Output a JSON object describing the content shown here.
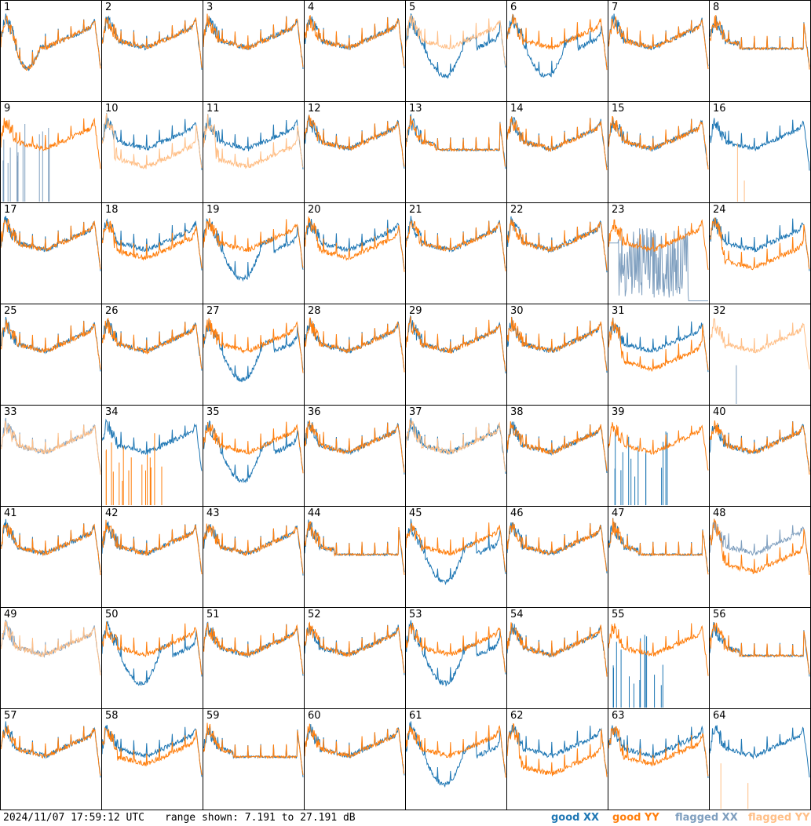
{
  "footer": {
    "timestamp": "2024/11/07 17:59:12 UTC",
    "range_text": "range shown: 7.191 to 27.191 dB"
  },
  "legend": {
    "good_xx": "good XX",
    "good_yy": "good YY",
    "flagged_xx": "flagged XX",
    "flagged_yy": "flagged YY"
  },
  "colors": {
    "good_xx": "#1f77b4",
    "good_yy": "#ff7f0e",
    "flagged_xx": "#7f9fbf",
    "flagged_yy": "#ffbf87"
  },
  "chart_data": {
    "type": "line",
    "grid": {
      "rows": 8,
      "cols": 8
    },
    "ylim_db": [
      7.191,
      27.191
    ],
    "panels": [
      {
        "label": "1",
        "xx": "good",
        "yy": "good",
        "shape": "early-drop"
      },
      {
        "label": "2",
        "xx": "good",
        "yy": "good",
        "shape": "normal"
      },
      {
        "label": "3",
        "xx": "good",
        "yy": "good",
        "shape": "normal"
      },
      {
        "label": "4",
        "xx": "good",
        "yy": "good",
        "shape": "normal"
      },
      {
        "label": "5",
        "xx": "good",
        "yy": "flagged",
        "shape": "xx-dip"
      },
      {
        "label": "6",
        "xx": "good",
        "yy": "good",
        "shape": "xx-dip"
      },
      {
        "label": "7",
        "xx": "good",
        "yy": "good",
        "shape": "normal"
      },
      {
        "label": "8",
        "xx": "good",
        "yy": "good",
        "shape": "flat"
      },
      {
        "label": "9",
        "xx": "flagged",
        "yy": "good",
        "shape": "xx-spikes"
      },
      {
        "label": "10",
        "xx": "good",
        "yy": "flagged",
        "shape": "split"
      },
      {
        "label": "11",
        "xx": "good",
        "yy": "flagged",
        "shape": "split"
      },
      {
        "label": "12",
        "xx": "good",
        "yy": "good",
        "shape": "normal"
      },
      {
        "label": "13",
        "xx": "good",
        "yy": "good",
        "shape": "flat"
      },
      {
        "label": "14",
        "xx": "good",
        "yy": "good",
        "shape": "normal"
      },
      {
        "label": "15",
        "xx": "good",
        "yy": "good",
        "shape": "normal"
      },
      {
        "label": "16",
        "xx": "good",
        "yy": "flagged",
        "shape": "yy-missing"
      },
      {
        "label": "17",
        "xx": "good",
        "yy": "good",
        "shape": "normal"
      },
      {
        "label": "18",
        "xx": "good",
        "yy": "good",
        "shape": "split-small"
      },
      {
        "label": "19",
        "xx": "good",
        "yy": "good",
        "shape": "xx-dip"
      },
      {
        "label": "20",
        "xx": "good",
        "yy": "good",
        "shape": "split-small"
      },
      {
        "label": "21",
        "xx": "good",
        "yy": "good",
        "shape": "normal"
      },
      {
        "label": "22",
        "xx": "good",
        "yy": "good",
        "shape": "normal"
      },
      {
        "label": "23",
        "xx": "flagged",
        "yy": "good",
        "shape": "xx-noise"
      },
      {
        "label": "24",
        "xx": "good",
        "yy": "good",
        "shape": "split"
      },
      {
        "label": "25",
        "xx": "good",
        "yy": "good",
        "shape": "normal"
      },
      {
        "label": "26",
        "xx": "good",
        "yy": "good",
        "shape": "normal"
      },
      {
        "label": "27",
        "xx": "good",
        "yy": "good",
        "shape": "xx-dip"
      },
      {
        "label": "28",
        "xx": "good",
        "yy": "good",
        "shape": "normal"
      },
      {
        "label": "29",
        "xx": "good",
        "yy": "good",
        "shape": "normal"
      },
      {
        "label": "30",
        "xx": "good",
        "yy": "good",
        "shape": "normal"
      },
      {
        "label": "31",
        "xx": "good",
        "yy": "good",
        "shape": "split"
      },
      {
        "label": "32",
        "xx": "flagged",
        "yy": "flagged",
        "shape": "yy-only"
      },
      {
        "label": "33",
        "xx": "flagged",
        "yy": "flagged",
        "shape": "normal"
      },
      {
        "label": "34",
        "xx": "good",
        "yy": "good",
        "shape": "yy-spikes"
      },
      {
        "label": "35",
        "xx": "good",
        "yy": "good",
        "shape": "xx-dip"
      },
      {
        "label": "36",
        "xx": "good",
        "yy": "good",
        "shape": "normal"
      },
      {
        "label": "37",
        "xx": "good",
        "yy": "flagged",
        "shape": "normal"
      },
      {
        "label": "38",
        "xx": "good",
        "yy": "good",
        "shape": "normal"
      },
      {
        "label": "39",
        "xx": "good",
        "yy": "good",
        "shape": "xx-spikes"
      },
      {
        "label": "40",
        "xx": "good",
        "yy": "good",
        "shape": "normal"
      },
      {
        "label": "41",
        "xx": "good",
        "yy": "good",
        "shape": "normal"
      },
      {
        "label": "42",
        "xx": "good",
        "yy": "good",
        "shape": "normal"
      },
      {
        "label": "43",
        "xx": "good",
        "yy": "good",
        "shape": "normal"
      },
      {
        "label": "44",
        "xx": "good",
        "yy": "good",
        "shape": "flat"
      },
      {
        "label": "45",
        "xx": "good",
        "yy": "good",
        "shape": "xx-dip"
      },
      {
        "label": "46",
        "xx": "good",
        "yy": "good",
        "shape": "normal"
      },
      {
        "label": "47",
        "xx": "good",
        "yy": "good",
        "shape": "flat"
      },
      {
        "label": "48",
        "xx": "flagged",
        "yy": "good",
        "shape": "split"
      },
      {
        "label": "49",
        "xx": "flagged",
        "yy": "flagged",
        "shape": "normal"
      },
      {
        "label": "50",
        "xx": "good",
        "yy": "good",
        "shape": "xx-dip"
      },
      {
        "label": "51",
        "xx": "good",
        "yy": "good",
        "shape": "normal"
      },
      {
        "label": "52",
        "xx": "good",
        "yy": "good",
        "shape": "normal"
      },
      {
        "label": "53",
        "xx": "good",
        "yy": "good",
        "shape": "xx-dip"
      },
      {
        "label": "54",
        "xx": "good",
        "yy": "good",
        "shape": "normal"
      },
      {
        "label": "55",
        "xx": "good",
        "yy": "good",
        "shape": "xx-spikes"
      },
      {
        "label": "56",
        "xx": "good",
        "yy": "good",
        "shape": "flat"
      },
      {
        "label": "57",
        "xx": "good",
        "yy": "good",
        "shape": "normal"
      },
      {
        "label": "58",
        "xx": "good",
        "yy": "good",
        "shape": "split-small"
      },
      {
        "label": "59",
        "xx": "good",
        "yy": "good",
        "shape": "flat"
      },
      {
        "label": "60",
        "xx": "good",
        "yy": "good",
        "shape": "normal"
      },
      {
        "label": "61",
        "xx": "good",
        "yy": "good",
        "shape": "xx-dip"
      },
      {
        "label": "62",
        "xx": "good",
        "yy": "good",
        "shape": "split"
      },
      {
        "label": "63",
        "xx": "good",
        "yy": "good",
        "shape": "split-small"
      },
      {
        "label": "64",
        "xx": "good",
        "yy": "flagged",
        "shape": "yy-missing"
      }
    ]
  }
}
